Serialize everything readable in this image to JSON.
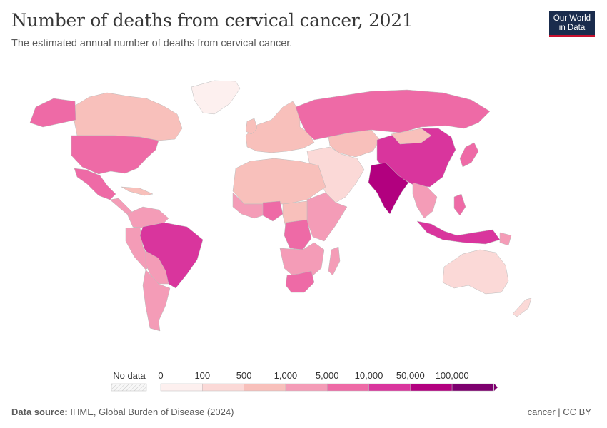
{
  "header": {
    "title": "Number of deaths from cervical cancer, 2021",
    "subtitle": "The estimated annual number of deaths from cervical cancer."
  },
  "logo": {
    "line1": "Our World",
    "line2": "in Data"
  },
  "legend": {
    "no_data_label": "No data",
    "ticks": [
      "0",
      "100",
      "500",
      "1,000",
      "5,000",
      "10,000",
      "50,000",
      "100,000"
    ],
    "colors": [
      "#fdf0ef",
      "#fbd9d7",
      "#f8c0bb",
      "#f49cb7",
      "#ee6aa6",
      "#d9359d",
      "#b2007f",
      "#7d006e"
    ]
  },
  "footer": {
    "source_label": "Data source:",
    "source_text": "IHME, Global Burden of Disease (2024)",
    "license": "cancer | CC BY"
  },
  "map_data": {
    "countries": [
      {
        "name": "India",
        "bin": 6
      },
      {
        "name": "China",
        "bin": 5
      },
      {
        "name": "Brazil",
        "bin": 5
      },
      {
        "name": "Indonesia",
        "bin": 5
      },
      {
        "name": "Russia",
        "bin": 4
      },
      {
        "name": "United States",
        "bin": 4
      },
      {
        "name": "Mexico",
        "bin": 4
      },
      {
        "name": "South Africa",
        "bin": 4
      },
      {
        "name": "Nigeria",
        "bin": 4
      },
      {
        "name": "DR Congo",
        "bin": 4
      },
      {
        "name": "Canada",
        "bin": 2
      },
      {
        "name": "Australia",
        "bin": 1
      },
      {
        "name": "Greenland",
        "bin": 0
      },
      {
        "name": "Argentina",
        "bin": 3
      }
    ]
  }
}
